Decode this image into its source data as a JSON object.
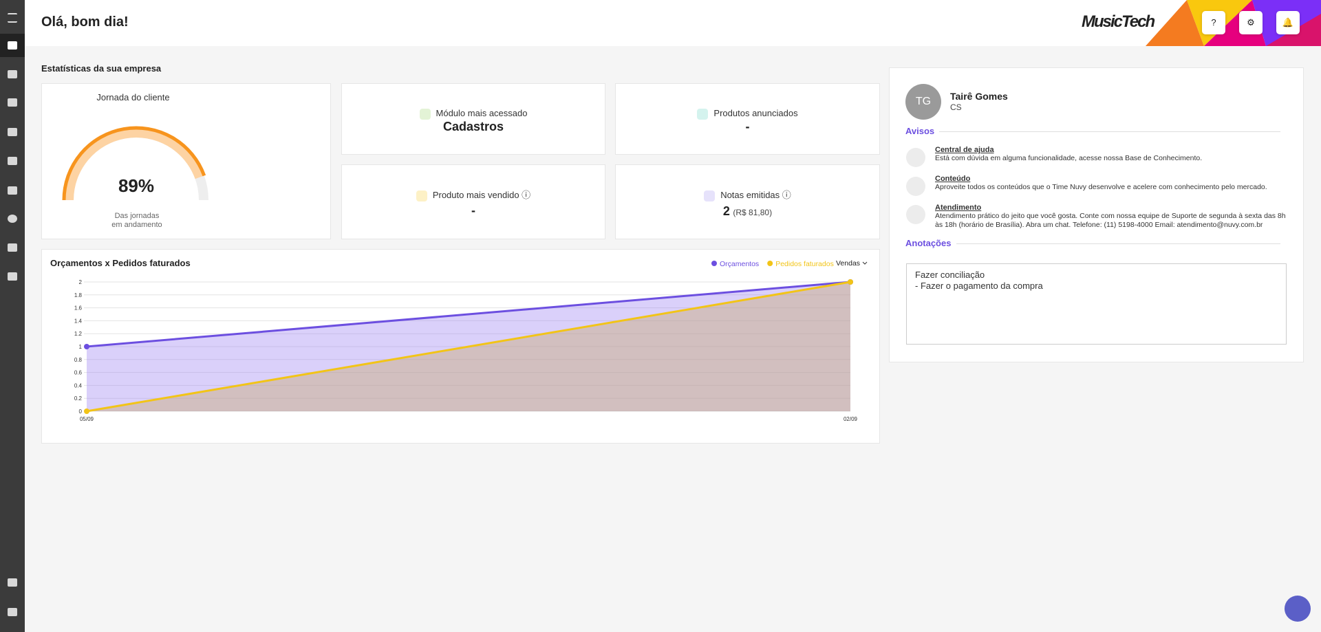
{
  "header": {
    "greeting": "Olá, bom dia!",
    "logo": "MusicTech",
    "help": "?"
  },
  "stats": {
    "title": "Estatísticas da sua empresa",
    "journey": {
      "title": "Jornada do cliente",
      "value": 89,
      "value_label": "89%",
      "caption_1": "Das jornadas",
      "caption_2": "em andamento"
    },
    "cards": [
      {
        "label": "Módulo mais acessado",
        "value": "Cadastros"
      },
      {
        "label": "Produtos anunciados",
        "value": "-"
      },
      {
        "label": "Produto mais vendido",
        "value": "-"
      },
      {
        "label": "Notas emitidas",
        "value": "2",
        "detail": "(R$ 81,80)"
      }
    ]
  },
  "chart_data": {
    "type": "line",
    "title": "Orçamentos x Pedidos faturados",
    "filter": "Vendas",
    "categories": [
      "05/09",
      "02/09"
    ],
    "series": [
      {
        "name": "Orçamentos",
        "color": "#6c4fe0",
        "values": [
          1,
          2
        ]
      },
      {
        "name": "Pedidos faturados",
        "color": "#f2c417",
        "values": [
          0,
          2
        ]
      }
    ],
    "ylim": [
      0,
      2
    ],
    "yticks": [
      0,
      0.2,
      0.4,
      0.6,
      0.8,
      1,
      1.2,
      1.4,
      1.6,
      1.8,
      2
    ],
    "grid": true
  },
  "profile": {
    "initials": "TG",
    "name": "Tairê Gomes",
    "role": "CS"
  },
  "notices": {
    "title": "Avisos",
    "items": [
      {
        "title": "Central de ajuda",
        "text": "Está com dúvida em alguma funcionalidade, acesse nossa Base de Conhecimento."
      },
      {
        "title": "Conteúdo",
        "text": "Aproveite todos os conteúdos que o Time Nuvy desenvolve e acelere com conhecimento pelo mercado."
      },
      {
        "title": "Atendimento",
        "text": "Atendimento prático do jeito que você gosta. Conte com nossa equipe de Suporte de segunda à sexta das 8h às 18h (horário de Brasília). Abra um chat. Telefone: (11) 5198-4000 Email: atendimento@nuvy.com.br"
      }
    ]
  },
  "notes": {
    "title": "Anotações",
    "lines": [
      "Fazer conciliação",
      "- Fazer o pagamento da compra"
    ]
  }
}
